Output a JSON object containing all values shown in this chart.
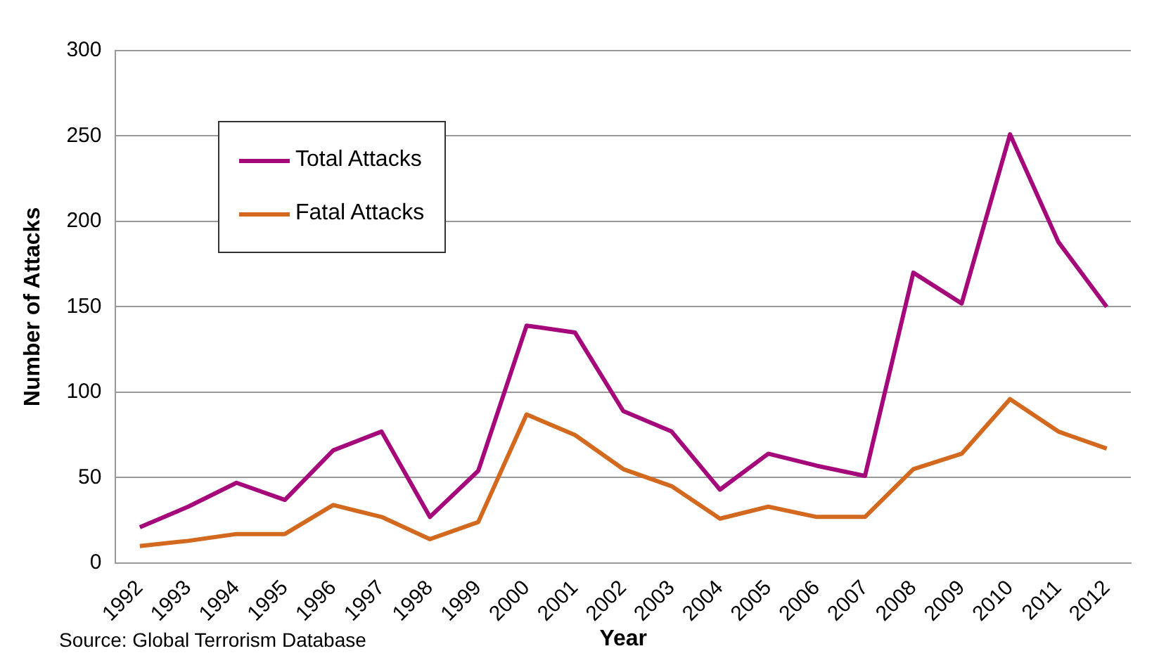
{
  "chart_data": {
    "type": "line",
    "xlabel": "Year",
    "ylabel": "Number of Attacks",
    "categories": [
      "1992",
      "1993",
      "1994",
      "1995",
      "1996",
      "1997",
      "1998",
      "1999",
      "2000",
      "2001",
      "2002",
      "2003",
      "2004",
      "2005",
      "2006",
      "2007",
      "2008",
      "2009",
      "2010",
      "2011",
      "2012"
    ],
    "series": [
      {
        "name": "Total Attacks",
        "color": "#a5087a",
        "values": [
          21,
          33,
          47,
          37,
          66,
          77,
          27,
          54,
          139,
          135,
          89,
          77,
          43,
          64,
          57,
          51,
          170,
          152,
          251,
          188,
          150
        ]
      },
      {
        "name": "Fatal Attacks",
        "color": "#d2691e",
        "values": [
          10,
          13,
          17,
          17,
          34,
          27,
          14,
          24,
          87,
          75,
          55,
          45,
          26,
          33,
          27,
          27,
          55,
          64,
          96,
          77,
          67
        ]
      }
    ],
    "ylim": [
      0,
      300
    ],
    "yticks": [
      0,
      50,
      100,
      150,
      200,
      250,
      300
    ],
    "grid": "y",
    "legend": "top left",
    "marker": "none",
    "line_style": "solid",
    "annotations": [
      "Source: Global Terrorism Database"
    ]
  }
}
